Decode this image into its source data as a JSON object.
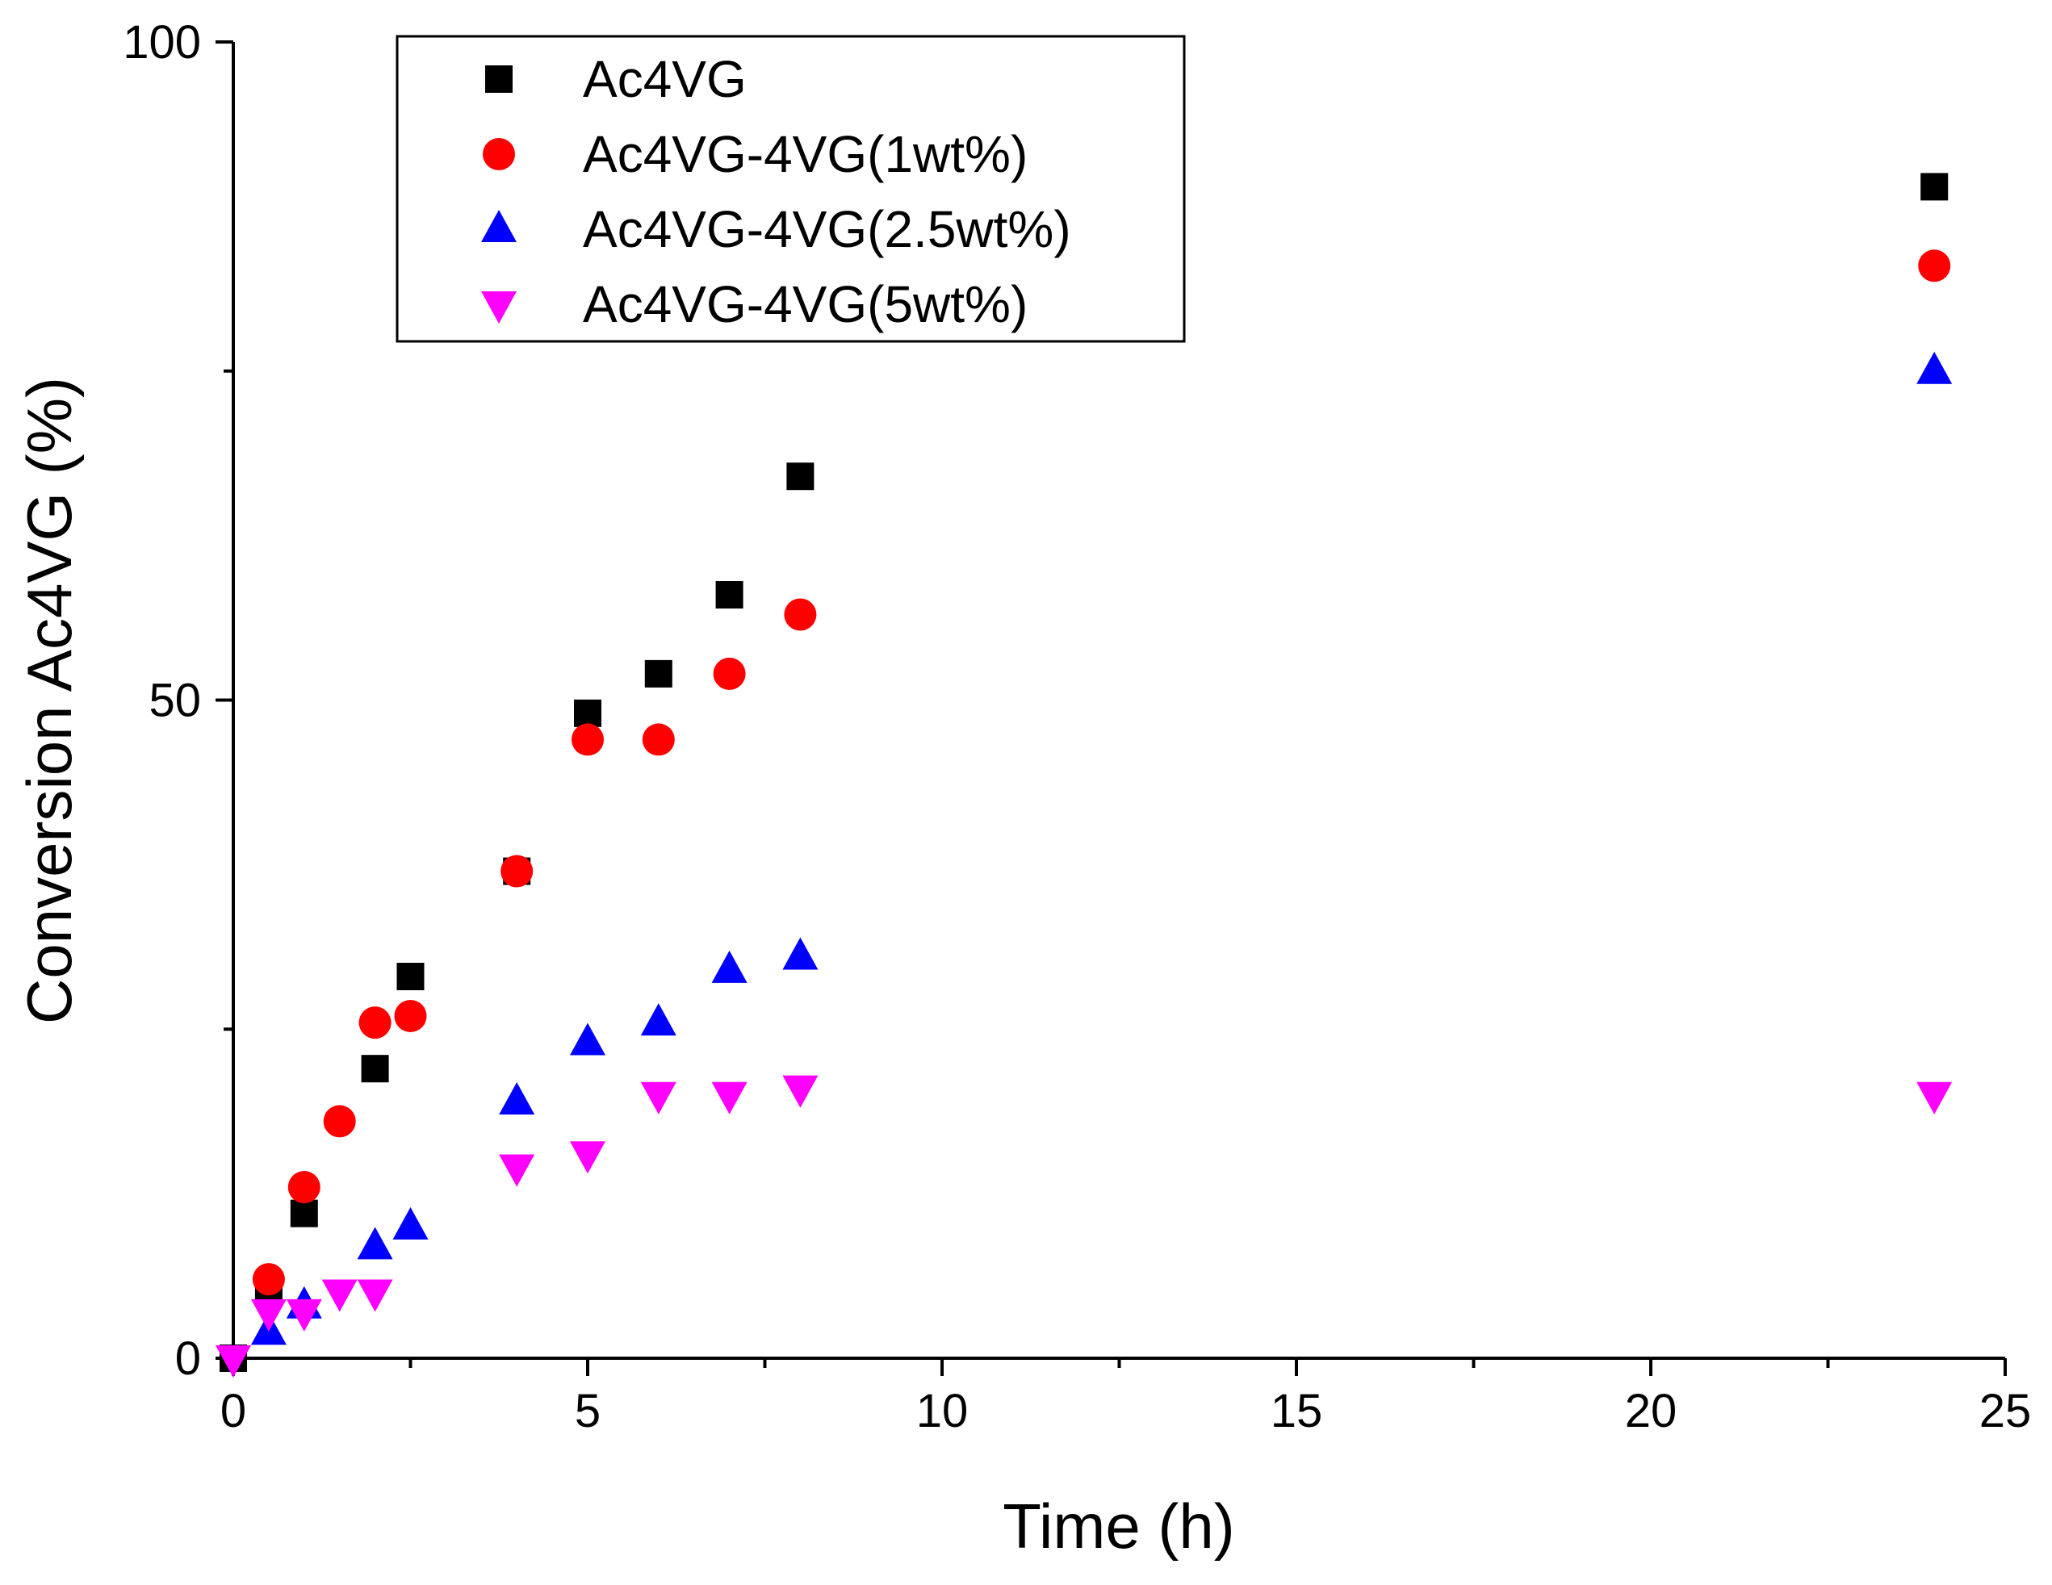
{
  "chart_data": {
    "type": "scatter",
    "title": "",
    "xlabel": "Time (h)",
    "ylabel": "Conversion Ac4VG (%)",
    "xlim": [
      0,
      25
    ],
    "ylim": [
      0,
      100
    ],
    "x_ticks": [
      0,
      5,
      10,
      15,
      20,
      25
    ],
    "x_tick_labels": [
      "0",
      "5",
      "10",
      "15",
      "20",
      "25"
    ],
    "y_ticks": [
      0,
      50,
      100
    ],
    "y_tick_labels": [
      "0",
      "50",
      "100"
    ],
    "grid": false,
    "legend_position": "top-left",
    "series": [
      {
        "name": "Ac4VG",
        "marker": "square",
        "color": "#000000",
        "x": [
          0,
          0.5,
          1,
          2,
          2.5,
          4,
          5,
          6,
          7,
          8,
          24
        ],
        "y": [
          0,
          5,
          11,
          22,
          29,
          37,
          49,
          52,
          58,
          67,
          89
        ]
      },
      {
        "name": "Ac4VG-4VG(1wt%)",
        "marker": "circle",
        "color": "#ff0000",
        "x": [
          0.5,
          1,
          1.5,
          2,
          2.5,
          4,
          5,
          6,
          7,
          8,
          24
        ],
        "y": [
          6,
          13,
          18,
          25.5,
          26,
          37,
          47,
          47,
          52,
          56.5,
          83
        ]
      },
      {
        "name": "Ac4VG-4VG(2.5wt%)",
        "marker": "triangle-up",
        "color": "#0000ff",
        "x": [
          0.5,
          1,
          2,
          2.5,
          4,
          5,
          6,
          7,
          8,
          24
        ],
        "y": [
          2,
          4,
          8.5,
          10,
          19.5,
          24,
          25.5,
          29.5,
          30.5,
          75
        ]
      },
      {
        "name": "Ac4VG-4VG(5wt%)",
        "marker": "triangle-down",
        "color": "#ff00ff",
        "x": [
          0,
          0.5,
          1,
          1.5,
          2,
          4,
          5,
          6,
          7,
          8,
          24
        ],
        "y": [
          0,
          3.5,
          3.5,
          5,
          5,
          14.5,
          15.5,
          20,
          20,
          20.5,
          20
        ]
      }
    ]
  }
}
